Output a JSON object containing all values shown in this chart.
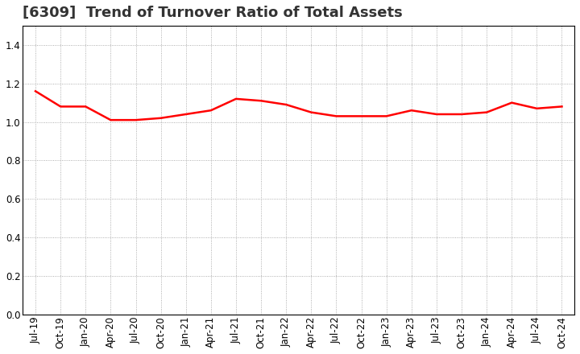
{
  "title": "[6309]  Trend of Turnover Ratio of Total Assets",
  "x_labels": [
    "Jul-19",
    "Oct-19",
    "Jan-20",
    "Apr-20",
    "Jul-20",
    "Oct-20",
    "Jan-21",
    "Apr-21",
    "Jul-21",
    "Oct-21",
    "Jan-22",
    "Apr-22",
    "Jul-22",
    "Oct-22",
    "Jan-23",
    "Apr-23",
    "Jul-23",
    "Oct-23",
    "Jan-24",
    "Apr-24",
    "Jul-24",
    "Oct-24"
  ],
  "values": [
    1.16,
    1.08,
    1.08,
    1.01,
    1.01,
    1.02,
    1.04,
    1.06,
    1.12,
    1.11,
    1.09,
    1.05,
    1.03,
    1.03,
    1.03,
    1.06,
    1.04,
    1.04,
    1.05,
    1.1,
    1.07,
    1.08
  ],
  "line_color": "#ff0000",
  "line_width": 1.8,
  "ylim": [
    0.0,
    1.5
  ],
  "yticks": [
    0.0,
    0.2,
    0.4,
    0.6,
    0.8,
    1.0,
    1.2,
    1.4
  ],
  "background_color": "#ffffff",
  "grid_color": "#999999",
  "title_fontsize": 13,
  "tick_fontsize": 8.5
}
